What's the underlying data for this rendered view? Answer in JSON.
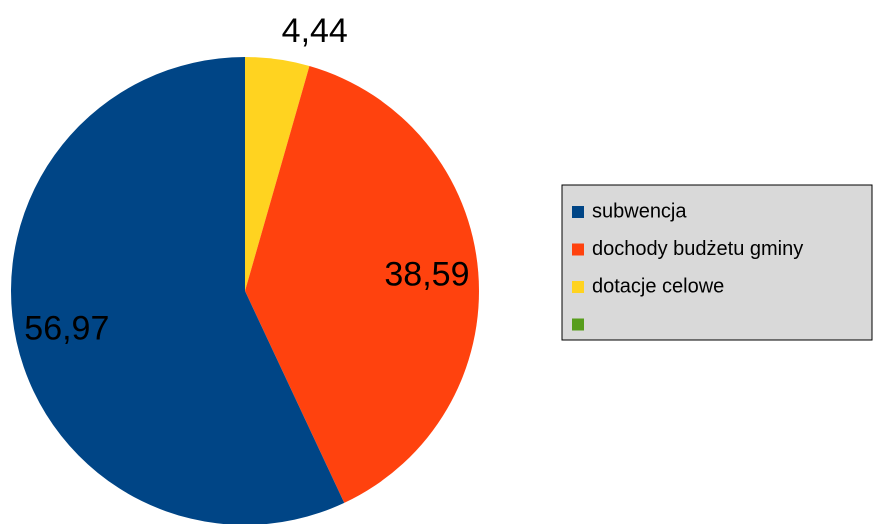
{
  "chart_data": {
    "type": "pie",
    "categories": [
      "subwencja",
      "dochody budżetu gminy",
      "dotacje celowe",
      null
    ],
    "values": [
      56.97,
      38.59,
      4.44,
      0
    ],
    "value_labels": [
      "56,97",
      "38,59",
      "4,44",
      null
    ],
    "colors": [
      "#004586",
      "#ff420e",
      "#ffd320",
      "#579d1c"
    ],
    "legend": "right"
  }
}
